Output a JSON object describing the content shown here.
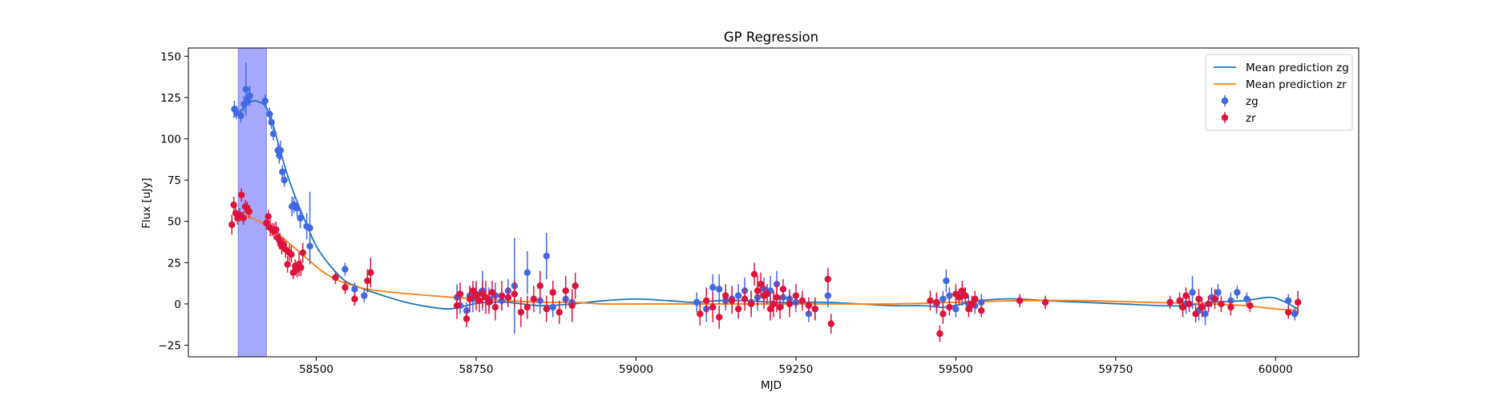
{
  "chart_data": {
    "type": "scatter",
    "title": "GP Regression",
    "xlabel": "MJD",
    "ylabel": "Flux [uJy]",
    "xlim": [
      58300,
      60130
    ],
    "ylim": [
      -32,
      155
    ],
    "xticks": [
      58500,
      58750,
      59000,
      59250,
      59500,
      59750,
      60000
    ],
    "yticks": [
      -25,
      0,
      25,
      50,
      75,
      100,
      125,
      150
    ],
    "grid": false,
    "legend_position": "top-right",
    "shaded_span": {
      "x0": 58378,
      "x1": 58422,
      "color": "#a5a8fb"
    },
    "series": [
      {
        "name": "Mean prediction zg",
        "kind": "line",
        "color": "#1f77b4",
        "x": [
          58370,
          58380,
          58392,
          58402,
          58412,
          58422,
          58432,
          58442,
          58455,
          58470,
          58485,
          58500,
          58520,
          58545,
          58575,
          58605,
          58640,
          58680,
          58705,
          58725,
          58745,
          58770,
          58800,
          58850,
          58900,
          58950,
          59000,
          59050,
          59090,
          59130,
          59170,
          59220,
          59260,
          59300,
          59350,
          59400,
          59450,
          59480,
          59510,
          59540,
          59570,
          59600,
          59640,
          59700,
          59760,
          59820,
          59860,
          59900,
          59950,
          59990,
          60010,
          60035
        ],
        "y": [
          113,
          116,
          121,
          123,
          122,
          119,
          109,
          95,
          78,
          62,
          48,
          35,
          24,
          14,
          9,
          5,
          1,
          -2,
          -3,
          -2,
          0,
          1,
          1,
          -1,
          0,
          2,
          3,
          2,
          1,
          2,
          2,
          1,
          1,
          1,
          0,
          -1,
          -1,
          -2,
          0,
          2,
          3,
          3,
          2,
          1,
          0,
          -1,
          -1,
          1,
          2,
          4,
          2,
          -3
        ]
      },
      {
        "name": "Mean prediction zr",
        "kind": "line",
        "color": "#ff7f0e",
        "x": [
          58370,
          58385,
          58400,
          58415,
          58430,
          58445,
          58460,
          58475,
          58490,
          58505,
          58525,
          58550,
          58580,
          58620,
          58680,
          58750,
          58800,
          58850,
          58900,
          58950,
          59000,
          59100,
          59200,
          59300,
          59400,
          59500,
          59600,
          59700,
          59800,
          59900,
          59950,
          60000,
          60035
        ],
        "y": [
          55,
          54,
          52,
          49,
          46,
          41,
          36,
          31,
          26,
          21,
          16,
          12,
          9,
          7,
          5,
          3,
          2,
          1,
          1,
          0,
          0,
          0,
          0,
          0,
          0,
          1,
          2,
          2,
          1,
          0,
          -1,
          -3,
          -4
        ]
      },
      {
        "name": "zg",
        "kind": "errorbar",
        "color": "#4169e1",
        "points": [
          [
            58372,
            118,
            5
          ],
          [
            58375,
            116,
            4
          ],
          [
            58382,
            114,
            4
          ],
          [
            58387,
            121,
            5
          ],
          [
            58390,
            130,
            16
          ],
          [
            58393,
            124,
            4
          ],
          [
            58396,
            126,
            6
          ],
          [
            58420,
            123,
            4
          ],
          [
            58427,
            115,
            4
          ],
          [
            58430,
            110,
            4
          ],
          [
            58433,
            103,
            4
          ],
          [
            58440,
            93,
            5
          ],
          [
            58442,
            90,
            5
          ],
          [
            58444,
            93,
            6
          ],
          [
            58447,
            80,
            4
          ],
          [
            58450,
            75,
            4
          ],
          [
            58462,
            59,
            6
          ],
          [
            58465,
            60,
            5
          ],
          [
            58470,
            58,
            5
          ],
          [
            58475,
            52,
            6
          ],
          [
            58485,
            47,
            8
          ],
          [
            58490,
            46,
            22
          ],
          [
            58490,
            35,
            8
          ],
          [
            58545,
            21,
            4
          ],
          [
            58560,
            9,
            4
          ],
          [
            58575,
            5,
            4
          ],
          [
            58720,
            4,
            8
          ],
          [
            58725,
            -1,
            5
          ],
          [
            58735,
            -4,
            5
          ],
          [
            58740,
            5,
            6
          ],
          [
            58745,
            3,
            8
          ],
          [
            58750,
            6,
            6
          ],
          [
            58760,
            8,
            12
          ],
          [
            58770,
            3,
            7
          ],
          [
            58780,
            5,
            8
          ],
          [
            58790,
            2,
            5
          ],
          [
            58800,
            8,
            7
          ],
          [
            58810,
            11,
            29
          ],
          [
            58830,
            19,
            13
          ],
          [
            58850,
            2,
            8
          ],
          [
            58860,
            29,
            14
          ],
          [
            58870,
            -2,
            6
          ],
          [
            58890,
            3,
            6
          ],
          [
            58900,
            1,
            6
          ],
          [
            59095,
            1,
            6
          ],
          [
            59110,
            -3,
            8
          ],
          [
            59120,
            10,
            8
          ],
          [
            59130,
            9,
            9
          ],
          [
            59140,
            2,
            6
          ],
          [
            59150,
            3,
            8
          ],
          [
            59160,
            5,
            7
          ],
          [
            59170,
            8,
            8
          ],
          [
            59180,
            1,
            7
          ],
          [
            59190,
            4,
            8
          ],
          [
            59200,
            9,
            7
          ],
          [
            59210,
            8,
            9
          ],
          [
            59220,
            12,
            8
          ],
          [
            59230,
            4,
            7
          ],
          [
            59240,
            3,
            6
          ],
          [
            59250,
            1,
            6
          ],
          [
            59270,
            -6,
            5
          ],
          [
            59280,
            -3,
            6
          ],
          [
            59300,
            5,
            7
          ],
          [
            59470,
            0,
            6
          ],
          [
            59480,
            3,
            5
          ],
          [
            59485,
            14,
            7
          ],
          [
            59490,
            5,
            5
          ],
          [
            59500,
            -3,
            5
          ],
          [
            59510,
            5,
            6
          ],
          [
            59520,
            0,
            5
          ],
          [
            59530,
            -1,
            5
          ],
          [
            59540,
            1,
            5
          ],
          [
            59860,
            0,
            6
          ],
          [
            59870,
            7,
            10
          ],
          [
            59880,
            -4,
            6
          ],
          [
            59890,
            -6,
            7
          ],
          [
            59900,
            4,
            6
          ],
          [
            59910,
            7,
            5
          ],
          [
            59930,
            2,
            5
          ],
          [
            59940,
            7,
            4
          ],
          [
            59955,
            3,
            4
          ],
          [
            60020,
            2,
            4
          ],
          [
            60030,
            -6,
            4
          ]
        ]
      },
      {
        "name": "zr",
        "kind": "errorbar",
        "color": "#dc143c",
        "points": [
          [
            58368,
            48,
            6
          ],
          [
            58371,
            60,
            5
          ],
          [
            58374,
            55,
            5
          ],
          [
            58377,
            52,
            4
          ],
          [
            58380,
            54,
            4
          ],
          [
            58383,
            66,
            4
          ],
          [
            58386,
            52,
            4
          ],
          [
            58389,
            59,
            4
          ],
          [
            58392,
            58,
            4
          ],
          [
            58395,
            56,
            4
          ],
          [
            58422,
            49,
            4
          ],
          [
            58425,
            53,
            4
          ],
          [
            58428,
            46,
            5
          ],
          [
            58431,
            45,
            4
          ],
          [
            58434,
            44,
            5
          ],
          [
            58437,
            45,
            5
          ],
          [
            58440,
            40,
            5
          ],
          [
            58443,
            38,
            5
          ],
          [
            58446,
            35,
            5
          ],
          [
            58449,
            36,
            4
          ],
          [
            58452,
            33,
            5
          ],
          [
            58455,
            24,
            5
          ],
          [
            58458,
            31,
            5
          ],
          [
            58461,
            30,
            5
          ],
          [
            58464,
            19,
            4
          ],
          [
            58467,
            23,
            4
          ],
          [
            58470,
            21,
            5
          ],
          [
            58473,
            24,
            7
          ],
          [
            58476,
            22,
            5
          ],
          [
            58479,
            31,
            6
          ],
          [
            58530,
            16,
            4
          ],
          [
            58545,
            10,
            4
          ],
          [
            58560,
            3,
            4
          ],
          [
            58580,
            14,
            7
          ],
          [
            58585,
            19,
            9
          ],
          [
            58720,
            -1,
            8
          ],
          [
            58725,
            6,
            7
          ],
          [
            58735,
            -9,
            5
          ],
          [
            58740,
            3,
            8
          ],
          [
            58745,
            8,
            6
          ],
          [
            58750,
            5,
            9
          ],
          [
            58755,
            2,
            7
          ],
          [
            58760,
            6,
            8
          ],
          [
            58765,
            4,
            10
          ],
          [
            58770,
            1,
            7
          ],
          [
            58775,
            7,
            7
          ],
          [
            58780,
            -2,
            8
          ],
          [
            58790,
            5,
            9
          ],
          [
            58800,
            4,
            6
          ],
          [
            58810,
            6,
            8
          ],
          [
            58820,
            -5,
            9
          ],
          [
            58830,
            -2,
            7
          ],
          [
            58840,
            3,
            8
          ],
          [
            58850,
            11,
            9
          ],
          [
            58860,
            -3,
            8
          ],
          [
            58870,
            7,
            7
          ],
          [
            58880,
            -5,
            7
          ],
          [
            58890,
            8,
            9
          ],
          [
            58900,
            -1,
            10
          ],
          [
            58905,
            11,
            8
          ],
          [
            59100,
            -6,
            7
          ],
          [
            59110,
            2,
            8
          ],
          [
            59120,
            -2,
            9
          ],
          [
            59130,
            -8,
            7
          ],
          [
            59140,
            5,
            7
          ],
          [
            59150,
            2,
            8
          ],
          [
            59160,
            -3,
            6
          ],
          [
            59170,
            3,
            7
          ],
          [
            59180,
            0,
            8
          ],
          [
            59185,
            18,
            7
          ],
          [
            59190,
            8,
            9
          ],
          [
            59195,
            12,
            7
          ],
          [
            59200,
            5,
            8
          ],
          [
            59205,
            6,
            6
          ],
          [
            59210,
            -3,
            7
          ],
          [
            59215,
            0,
            8
          ],
          [
            59220,
            4,
            9
          ],
          [
            59225,
            -2,
            7
          ],
          [
            59230,
            9,
            6
          ],
          [
            59240,
            0,
            8
          ],
          [
            59250,
            5,
            7
          ],
          [
            59260,
            2,
            6
          ],
          [
            59270,
            -1,
            5
          ],
          [
            59280,
            -3,
            7
          ],
          [
            59300,
            15,
            7
          ],
          [
            59305,
            -12,
            6
          ],
          [
            59460,
            2,
            6
          ],
          [
            59470,
            1,
            6
          ],
          [
            59475,
            -18,
            5
          ],
          [
            59480,
            -6,
            6
          ],
          [
            59490,
            -2,
            5
          ],
          [
            59500,
            6,
            6
          ],
          [
            59505,
            4,
            5
          ],
          [
            59510,
            8,
            6
          ],
          [
            59515,
            5,
            5
          ],
          [
            59520,
            -3,
            5
          ],
          [
            59525,
            0,
            5
          ],
          [
            59530,
            3,
            5
          ],
          [
            59540,
            -4,
            4
          ],
          [
            59600,
            2,
            4
          ],
          [
            59640,
            1,
            4
          ],
          [
            59835,
            1,
            4
          ],
          [
            59850,
            2,
            5
          ],
          [
            59855,
            -2,
            6
          ],
          [
            59860,
            5,
            5
          ],
          [
            59865,
            0,
            5
          ],
          [
            59875,
            -6,
            5
          ],
          [
            59880,
            3,
            6
          ],
          [
            59885,
            -2,
            6
          ],
          [
            59895,
            0,
            5
          ],
          [
            59905,
            3,
            6
          ],
          [
            59915,
            0,
            5
          ],
          [
            59930,
            -2,
            5
          ],
          [
            59960,
            -1,
            4
          ],
          [
            60020,
            -5,
            4
          ],
          [
            60035,
            1,
            7
          ]
        ]
      }
    ]
  }
}
